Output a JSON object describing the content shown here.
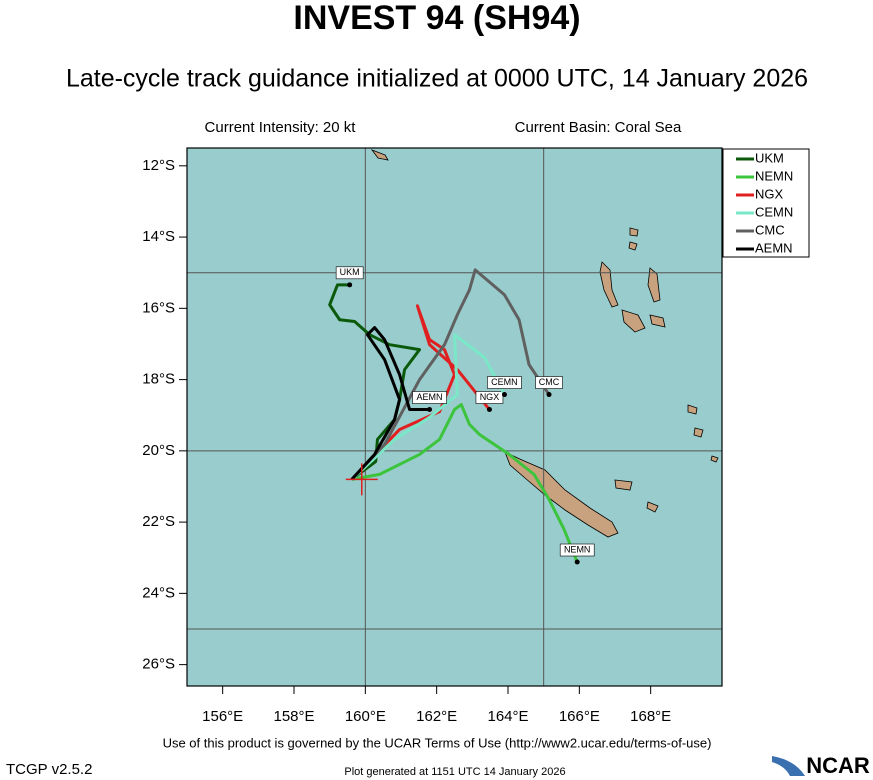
{
  "chart_data": {
    "type": "track-map",
    "title": "INVEST 94 (SH94)",
    "subtitle": "Late-cycle track guidance initialized at 0000 UTC, 14 January 2026",
    "intensity": "Current Intensity: 20 kt",
    "basin": "Current Basin: Coral Sea",
    "xlim": [
      155,
      170
    ],
    "ylim": [
      -26.6,
      -11.5
    ],
    "xticks": [
      {
        "value": 156,
        "label": "156°E"
      },
      {
        "value": 158,
        "label": "158°E"
      },
      {
        "value": 160,
        "label": "160°E"
      },
      {
        "value": 162,
        "label": "162°E"
      },
      {
        "value": 164,
        "label": "164°E"
      },
      {
        "value": 166,
        "label": "166°E"
      },
      {
        "value": 168,
        "label": "168°E"
      }
    ],
    "yticks": [
      {
        "value": -12,
        "label": "12°S"
      },
      {
        "value": -14,
        "label": "14°S"
      },
      {
        "value": -16,
        "label": "16°S"
      },
      {
        "value": -18,
        "label": "18°S"
      },
      {
        "value": -20,
        "label": "20°S"
      },
      {
        "value": -22,
        "label": "22°S"
      },
      {
        "value": -24,
        "label": "24°S"
      },
      {
        "value": -26,
        "label": "26°S"
      }
    ],
    "grid_lon": [
      160,
      165
    ],
    "grid_lat": [
      -15,
      -20,
      -25
    ],
    "current_position": {
      "lon": 159.9,
      "lat": -20.8
    },
    "series": [
      {
        "name": "UKM",
        "color": "#0b5a0b",
        "lon": [
          159.62,
          160.29,
          160.34,
          160.82,
          160.96,
          161.1,
          161.52,
          160.68,
          160.12,
          159.7,
          159.28,
          159.0,
          159.22,
          159.56
        ],
        "lat": [
          -20.8,
          -20.3,
          -19.68,
          -19.12,
          -18.56,
          -17.72,
          -17.16,
          -17.02,
          -16.74,
          -16.37,
          -16.32,
          -15.9,
          -15.34,
          -15.34
        ]
      },
      {
        "name": "NEMN",
        "color": "#3cc43c",
        "lon": [
          159.62,
          160.4,
          161.52,
          162.08,
          162.5,
          162.69,
          162.92,
          163.2,
          164.03,
          164.73,
          165.15,
          165.57,
          165.94
        ],
        "lat": [
          -20.8,
          -20.66,
          -20.1,
          -19.68,
          -18.84,
          -18.7,
          -19.26,
          -19.54,
          -20.1,
          -20.66,
          -21.36,
          -22.2,
          -23.12
        ]
      },
      {
        "name": "NGX",
        "color": "#e02020",
        "lon": [
          159.62,
          160.96,
          162.08,
          162.5,
          162.22,
          161.8,
          161.46,
          161.8,
          162.58,
          163.48
        ],
        "lat": [
          -20.8,
          -19.4,
          -18.9,
          -17.86,
          -17.16,
          -16.88,
          -15.93,
          -17.02,
          -17.72,
          -18.84
        ]
      },
      {
        "name": "CEMN",
        "color": "#7ae8c8",
        "lon": [
          159.62,
          160.82,
          161.8,
          162.58,
          162.5,
          163.34,
          163.9
        ],
        "lat": [
          -20.8,
          -19.68,
          -19.06,
          -18.42,
          -16.74,
          -17.38,
          -18.42
        ]
      },
      {
        "name": "CMC",
        "color": "#606060",
        "lon": [
          159.62,
          160.54,
          161.52,
          162.22,
          162.58,
          162.92,
          163.08,
          163.9,
          164.31,
          164.59,
          165.15
        ],
        "lat": [
          -20.8,
          -19.82,
          -18.0,
          -17.02,
          -16.18,
          -15.48,
          -14.92,
          -15.62,
          -16.32,
          -17.58,
          -18.42
        ]
      },
      {
        "name": "AEMN",
        "color": "#000000",
        "lon": [
          159.62,
          160.26,
          160.82,
          160.96,
          160.54,
          160.06,
          160.26,
          160.54,
          160.96,
          161.24,
          161.8
        ],
        "lat": [
          -20.8,
          -20.1,
          -19.12,
          -18.56,
          -17.44,
          -16.74,
          -16.54,
          -16.88,
          -17.86,
          -18.84,
          -18.84
        ]
      }
    ],
    "footer": "Use of this product is governed by the UCAR Terms of Use (http://www2.ucar.edu/terms-of-use)",
    "version": "TCGP v2.5.2",
    "generated": "Plot generated at 1151 UTC   14 January 2026",
    "logo": "NCAR"
  }
}
